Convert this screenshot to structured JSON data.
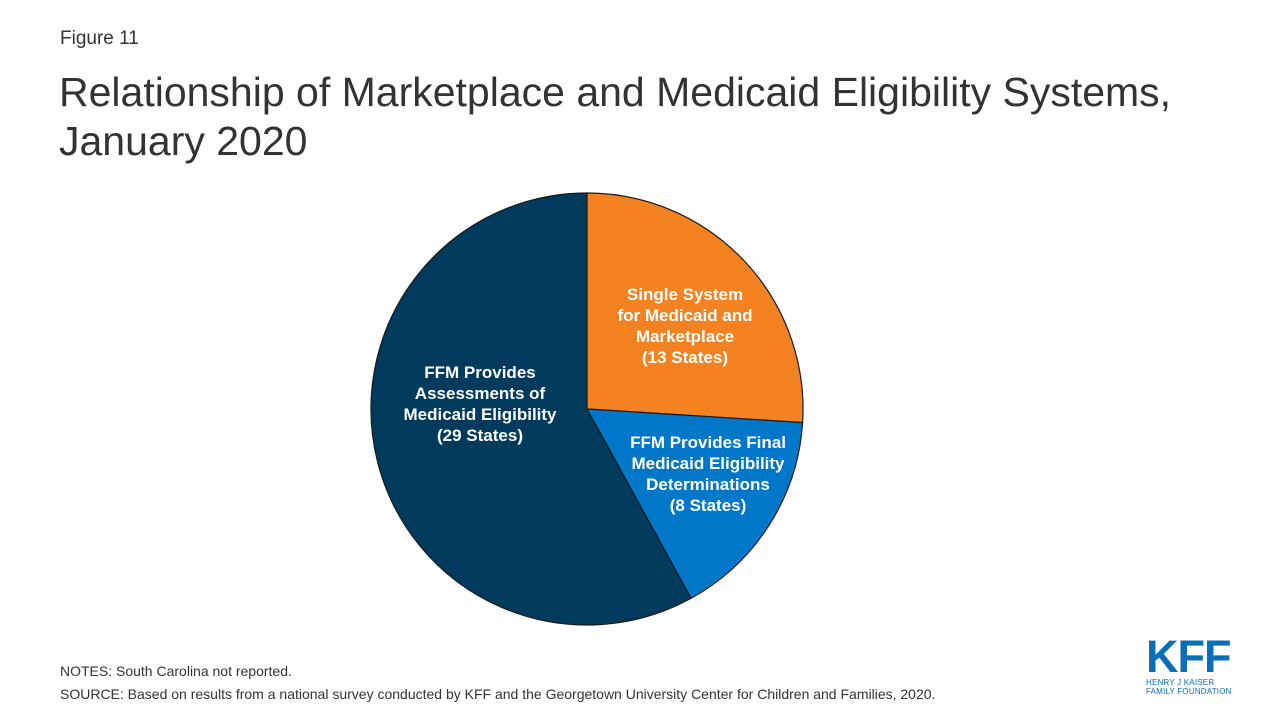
{
  "figure_label": "Figure 11",
  "title": "Relationship of Marketplace and Medicaid Eligibility Systems, January 2020",
  "notes": "NOTES: South Carolina not reported.",
  "source": "SOURCE: Based on results from a national survey conducted by KFF and the Georgetown University Center for Children and Families, 2020.",
  "logo": {
    "main": "KFF",
    "line1": "HENRY J KAISER",
    "line2": "FAMILY FOUNDATION"
  },
  "chart_data": {
    "type": "pie",
    "title": "Relationship of Marketplace and Medicaid Eligibility Systems, January 2020",
    "slices": [
      {
        "name": "Single System for Medicaid and Marketplace",
        "value": 13,
        "color": "#f58220",
        "label_lines": [
          "Single System",
          "for Medicaid and",
          "Marketplace",
          "(13 States)"
        ]
      },
      {
        "name": "FFM Provides Final Medicaid Eligibility Determinations",
        "value": 8,
        "color": "#0077c8",
        "label_lines": [
          "FFM Provides Final",
          "Medicaid Eligibility",
          "Determinations",
          "(8 States)"
        ]
      },
      {
        "name": "FFM Provides Assessments of Medicaid Eligibility",
        "value": 29,
        "color": "#003a5d",
        "label_lines": [
          "FFM Provides",
          "Assessments of",
          "Medicaid Eligibility",
          "(29 States)"
        ]
      }
    ]
  }
}
